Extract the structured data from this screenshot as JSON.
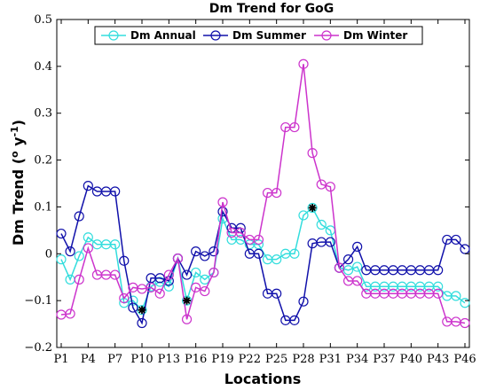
{
  "chart_data": {
    "type": "line",
    "title": "Dm Trend for GoG",
    "xlabel": "Locations",
    "ylabel": "Dm Trend (",
    "ylabel_degree": "o",
    "ylabel_mid": " y",
    "ylabel_exp": "-1",
    "ylabel_end": ")",
    "ylim": [
      -0.2,
      0.5
    ],
    "yticks": [
      "−0.2",
      "−0.1",
      "0",
      "0.1",
      "0.2",
      "0.3",
      "0.4",
      "0.5"
    ],
    "ytick_values": [
      -0.2,
      -0.1,
      0,
      0.1,
      0.2,
      0.3,
      0.4,
      0.5
    ],
    "x": [
      "P1",
      "P2",
      "P3",
      "P4",
      "P5",
      "P6",
      "P7",
      "P8",
      "P9",
      "P10",
      "P11",
      "P12",
      "P13",
      "P14",
      "P15",
      "P16",
      "P17",
      "P18",
      "P19",
      "P20",
      "P21",
      "P22",
      "P23",
      "P24",
      "P25",
      "P26",
      "P27",
      "P28",
      "P29",
      "P30",
      "P31",
      "P32",
      "P33",
      "P34",
      "P35",
      "P36",
      "P37",
      "P38",
      "P39",
      "P40",
      "P41",
      "P42",
      "P43",
      "P44",
      "P45",
      "P46"
    ],
    "xticks": [
      "P1",
      "P4",
      "P7",
      "P10",
      "P13",
      "P16",
      "P19",
      "P22",
      "P25",
      "P28",
      "P31",
      "P34",
      "P37",
      "P40",
      "P43",
      "P46"
    ],
    "xtick_index": [
      0,
      3,
      6,
      9,
      12,
      15,
      18,
      21,
      24,
      27,
      30,
      33,
      36,
      39,
      42,
      45
    ],
    "legend_position": "top",
    "grid": false,
    "series": [
      {
        "name": "Dm Annual",
        "color": "#33dddd",
        "values": [
          -0.012,
          -0.055,
          -0.005,
          0.035,
          0.02,
          0.02,
          0.02,
          -0.105,
          -0.1,
          -0.12,
          -0.07,
          -0.06,
          -0.07,
          -0.01,
          -0.1,
          -0.04,
          -0.055,
          -0.04,
          0.075,
          0.03,
          0.03,
          0.02,
          0.02,
          -0.012,
          -0.012,
          0.0,
          0.0,
          0.082,
          0.098,
          0.062,
          0.05,
          -0.03,
          -0.035,
          -0.028,
          -0.07,
          -0.07,
          -0.07,
          -0.07,
          -0.07,
          -0.07,
          -0.07,
          -0.07,
          -0.07,
          -0.09,
          -0.09,
          -0.105
        ]
      },
      {
        "name": "Dm Summer",
        "color": "#1010aa",
        "values": [
          0.043,
          0.005,
          0.08,
          0.145,
          0.133,
          0.133,
          0.133,
          -0.015,
          -0.115,
          -0.148,
          -0.052,
          -0.052,
          -0.058,
          -0.01,
          -0.045,
          0.005,
          -0.005,
          0.005,
          0.09,
          0.055,
          0.055,
          0.0,
          0.0,
          -0.085,
          -0.085,
          -0.142,
          -0.142,
          -0.102,
          0.022,
          0.025,
          0.025,
          -0.03,
          -0.012,
          0.015,
          -0.035,
          -0.035,
          -0.035,
          -0.035,
          -0.035,
          -0.035,
          -0.035,
          -0.035,
          -0.035,
          0.03,
          0.03,
          0.01
        ]
      },
      {
        "name": "Dm Winter",
        "color": "#cc33cc",
        "values": [
          -0.13,
          -0.128,
          -0.055,
          0.012,
          -0.045,
          -0.045,
          -0.045,
          -0.095,
          -0.072,
          -0.075,
          -0.072,
          -0.085,
          -0.045,
          -0.01,
          -0.14,
          -0.072,
          -0.08,
          -0.04,
          0.11,
          0.045,
          0.045,
          0.03,
          0.03,
          0.13,
          0.13,
          0.27,
          0.27,
          0.405,
          0.215,
          0.148,
          0.143,
          -0.03,
          -0.058,
          -0.058,
          -0.085,
          -0.085,
          -0.085,
          -0.085,
          -0.085,
          -0.085,
          -0.085,
          -0.085,
          -0.085,
          -0.145,
          -0.145,
          -0.148
        ]
      }
    ],
    "markers": [
      {
        "series": "Dm Annual",
        "x": "P10",
        "y": -0.12
      },
      {
        "series": "Dm Annual",
        "x": "P15",
        "y": -0.1
      },
      {
        "series": "Dm Annual",
        "x": "P29",
        "y": 0.098
      }
    ]
  }
}
